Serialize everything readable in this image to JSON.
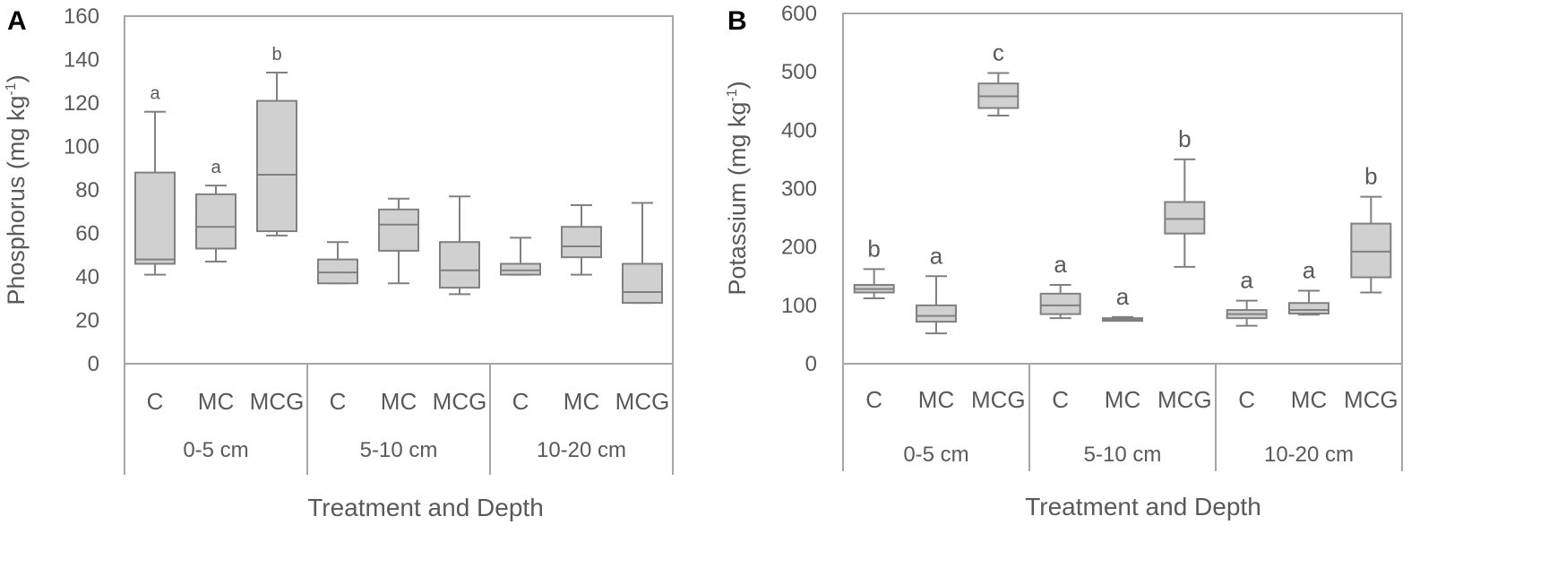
{
  "chart_data": [
    {
      "type": "boxplot",
      "panel_label": "A",
      "ylabel": "Phosphorus (mg kg-1)",
      "ylabel_main": "Phosphorus (mg kg",
      "ylabel_sup": "-1",
      "ylabel_end": ")",
      "xlabel": "Treatment and Depth",
      "ylim": [
        0,
        160
      ],
      "yticks": [
        "0",
        "20",
        "40",
        "60",
        "80",
        "100",
        "120",
        "140",
        "160"
      ],
      "groups": [
        "0-5 cm",
        "5-10 cm",
        "10-20 cm"
      ],
      "categories": [
        "C",
        "MC",
        "MCG",
        "C",
        "MC",
        "MCG",
        "C",
        "MC",
        "MCG"
      ],
      "boxes": [
        {
          "min": 41,
          "q1": 46,
          "median": 48,
          "q3": 88,
          "max": 116,
          "letter": "a"
        },
        {
          "min": 47,
          "q1": 53,
          "median": 63,
          "q3": 78,
          "max": 82,
          "letter": "a"
        },
        {
          "min": 59,
          "q1": 61,
          "median": 87,
          "q3": 121,
          "max": 134,
          "letter": "b"
        },
        {
          "min": 37,
          "q1": 37,
          "median": 42,
          "q3": 48,
          "max": 56,
          "letter": ""
        },
        {
          "min": 37,
          "q1": 52,
          "median": 64,
          "q3": 71,
          "max": 76,
          "letter": ""
        },
        {
          "min": 32,
          "q1": 35,
          "median": 43,
          "q3": 56,
          "max": 77,
          "letter": ""
        },
        {
          "min": 41,
          "q1": 41,
          "median": 43,
          "q3": 46,
          "max": 58,
          "letter": ""
        },
        {
          "min": 41,
          "q1": 49,
          "median": 54,
          "q3": 63,
          "max": 73,
          "letter": ""
        },
        {
          "min": 28,
          "q1": 28,
          "median": 33,
          "q3": 46,
          "max": 74,
          "letter": ""
        }
      ]
    },
    {
      "type": "boxplot",
      "panel_label": "B",
      "ylabel": "Potassium (mg kg-1)",
      "ylabel_main": "Potassium (mg kg",
      "ylabel_sup": "-1",
      "ylabel_end": ")",
      "xlabel": "Treatment and Depth",
      "ylim": [
        0,
        600
      ],
      "yticks": [
        "0",
        "100",
        "200",
        "300",
        "400",
        "500",
        "600"
      ],
      "groups": [
        "0-5 cm",
        "5-10 cm",
        "10-20 cm"
      ],
      "categories": [
        "C",
        "MC",
        "MCG",
        "C",
        "MC",
        "MCG",
        "C",
        "MC",
        "MCG"
      ],
      "boxes": [
        {
          "min": 112,
          "q1": 122,
          "median": 128,
          "q3": 135,
          "max": 162,
          "letter": "b"
        },
        {
          "min": 52,
          "q1": 72,
          "median": 82,
          "q3": 100,
          "max": 150,
          "letter": "a"
        },
        {
          "min": 425,
          "q1": 438,
          "median": 458,
          "q3": 480,
          "max": 498,
          "letter": "c"
        },
        {
          "min": 78,
          "q1": 85,
          "median": 100,
          "q3": 120,
          "max": 135,
          "letter": "a"
        },
        {
          "min": 74,
          "q1": 75,
          "median": 76,
          "q3": 78,
          "max": 80,
          "letter": "a"
        },
        {
          "min": 166,
          "q1": 223,
          "median": 248,
          "q3": 277,
          "max": 350,
          "letter": "b"
        },
        {
          "min": 65,
          "q1": 78,
          "median": 85,
          "q3": 92,
          "max": 108,
          "letter": "a"
        },
        {
          "min": 84,
          "q1": 86,
          "median": 92,
          "q3": 104,
          "max": 125,
          "letter": "a"
        },
        {
          "min": 122,
          "q1": 148,
          "median": 192,
          "q3": 240,
          "max": 286,
          "letter": "b"
        }
      ]
    }
  ]
}
